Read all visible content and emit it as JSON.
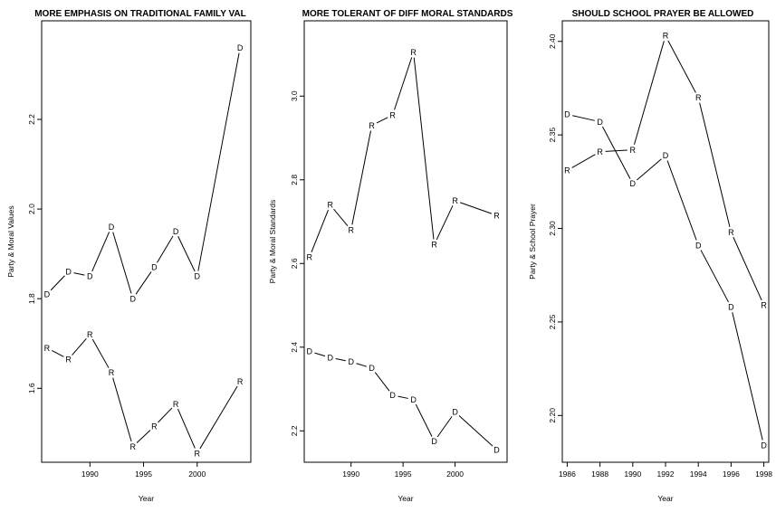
{
  "chart_data": [
    {
      "type": "line",
      "title": "MORE EMPHASIS ON TRADITIONAL FAMILY VAL",
      "xlabel": "Year",
      "ylabel": "Party & Moral Values",
      "xlim": [
        1985.5,
        2005
      ],
      "ylim": [
        1.435,
        2.42
      ],
      "xticks": [
        "1990",
        "1995",
        "2000"
      ],
      "yticks": [
        "1.6",
        "1.8",
        "2.0",
        "2.2"
      ],
      "series": [
        {
          "name": "D",
          "x": [
            1986,
            1988,
            1990,
            1992,
            1994,
            1996,
            1998,
            2000,
            2004
          ],
          "values": [
            1.81,
            1.86,
            1.85,
            1.96,
            1.8,
            1.87,
            1.95,
            1.85,
            2.36
          ]
        },
        {
          "name": "R",
          "x": [
            1986,
            1988,
            1990,
            1992,
            1994,
            1996,
            1998,
            2000,
            2004
          ],
          "values": [
            1.69,
            1.665,
            1.72,
            1.635,
            1.47,
            1.515,
            1.565,
            1.455,
            1.615
          ]
        }
      ]
    },
    {
      "type": "line",
      "title": "MORE TOLERANT OF DIFF MORAL STANDARDS",
      "xlabel": "Year",
      "ylabel": "Party & Moral Standards",
      "xlim": [
        1985.5,
        2005
      ],
      "ylim": [
        2.125,
        3.18
      ],
      "xticks": [
        "1990",
        "1995",
        "2000"
      ],
      "yticks": [
        "2.2",
        "2.4",
        "2.6",
        "2.8",
        "3.0"
      ],
      "series": [
        {
          "name": "R",
          "x": [
            1986,
            1988,
            1990,
            1992,
            1994,
            1996,
            1998,
            2000,
            2004
          ],
          "values": [
            2.615,
            2.74,
            2.68,
            2.93,
            2.955,
            3.105,
            2.645,
            2.75,
            2.715
          ]
        },
        {
          "name": "D",
          "x": [
            1986,
            1988,
            1990,
            1992,
            1994,
            1996,
            1998,
            2000,
            2004
          ],
          "values": [
            2.39,
            2.375,
            2.365,
            2.35,
            2.285,
            2.275,
            2.175,
            2.245,
            2.155
          ]
        }
      ]
    },
    {
      "type": "line",
      "title": "SHOULD SCHOOL PRAYER BE ALLOWED",
      "xlabel": "Year",
      "ylabel": "Party & School Prayer",
      "xlim": [
        1985.7,
        1998.3
      ],
      "ylim": [
        2.175,
        2.411
      ],
      "xticks": [
        "1986",
        "1988",
        "1990",
        "1992",
        "1994",
        "1996",
        "1998"
      ],
      "yticks": [
        "2.20",
        "2.25",
        "2.30",
        "2.35",
        "2.40"
      ],
      "series": [
        {
          "name": "D",
          "x": [
            1986,
            1988,
            1990,
            1992,
            1994,
            1996,
            1998
          ],
          "values": [
            2.361,
            2.357,
            2.324,
            2.339,
            2.291,
            2.258,
            2.184
          ]
        },
        {
          "name": "R",
          "x": [
            1986,
            1988,
            1990,
            1992,
            1994,
            1996,
            1998
          ],
          "values": [
            2.331,
            2.341,
            2.342,
            2.403,
            2.37,
            2.298,
            2.259
          ]
        }
      ]
    }
  ]
}
